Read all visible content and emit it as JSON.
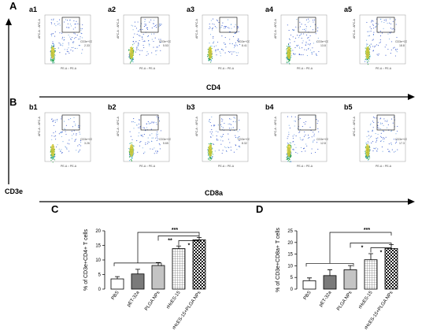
{
  "panels": {
    "A": "A",
    "B": "B",
    "C": "C",
    "D": "D"
  },
  "axis": {
    "cd3e": "CD3e",
    "cd4": "CD4",
    "cd8a": "CD8a"
  },
  "flow_row_a": [
    {
      "label": "a1",
      "gate": "CD3e+CD4+",
      "value": "2.33"
    },
    {
      "label": "a2",
      "gate": "CD3e+CD4+",
      "value": "5.53"
    },
    {
      "label": "a3",
      "gate": "CD3e+CD4+",
      "value": "8.41"
    },
    {
      "label": "a4",
      "gate": "CD3e+CD4+",
      "value": "13.8"
    },
    {
      "label": "a5",
      "gate": "CD3e+CD4+",
      "value": "18.8"
    }
  ],
  "flow_row_b": [
    {
      "label": "b1",
      "gate": "CD3e+CD8+",
      "value": "3.26"
    },
    {
      "label": "b2",
      "gate": "CD3e+CD8+",
      "value": "5.65"
    },
    {
      "label": "b3",
      "gate": "CD3e+CD8+",
      "value": "8.32"
    },
    {
      "label": "b4",
      "gate": "CD3e+CD8+",
      "value": "12.8"
    },
    {
      "label": "b5",
      "gate": "CD3e+CD8+",
      "value": "17.3"
    }
  ],
  "flow_axes": {
    "x": "PE-A :: PE-A",
    "y": "APC-A :: APC-A"
  },
  "chart_data": [
    {
      "type": "bar",
      "panel": "C",
      "categories": [
        "PBS",
        "pET-32a",
        "PLGA NPs",
        "rHcES-15",
        "rHcES-15+PLGA NPs"
      ],
      "values": [
        3.5,
        5.2,
        8.1,
        13.9,
        16.9
      ],
      "errors": [
        0.8,
        1.6,
        1.0,
        0.9,
        0.8
      ],
      "ylabel": "% of CD3e+CD4+ T cells",
      "ylim": [
        0,
        20
      ],
      "yticks": [
        "0",
        "5",
        "10",
        "15",
        "20"
      ],
      "significance": [
        "***",
        "**",
        "*"
      ],
      "patterns": [
        "white",
        "gray",
        "lightgray",
        "grid",
        "checker"
      ]
    },
    {
      "type": "bar",
      "panel": "D",
      "categories": [
        "PBS",
        "pET-32a",
        "PLGA NPs",
        "rHcES-15",
        "rHcES-15+PLGA NPs"
      ],
      "values": [
        3.6,
        5.8,
        8.3,
        12.6,
        17.4
      ],
      "errors": [
        1.2,
        2.5,
        1.8,
        2.6,
        1.7
      ],
      "ylabel": "% of CD3e+CD8a+ T cells",
      "ylim": [
        0,
        25
      ],
      "yticks": [
        "0",
        "5",
        "10",
        "15",
        "20",
        "25"
      ],
      "significance": [
        "***",
        "*",
        "*"
      ],
      "patterns": [
        "white",
        "gray",
        "lightgray",
        "grid",
        "checker"
      ]
    }
  ]
}
